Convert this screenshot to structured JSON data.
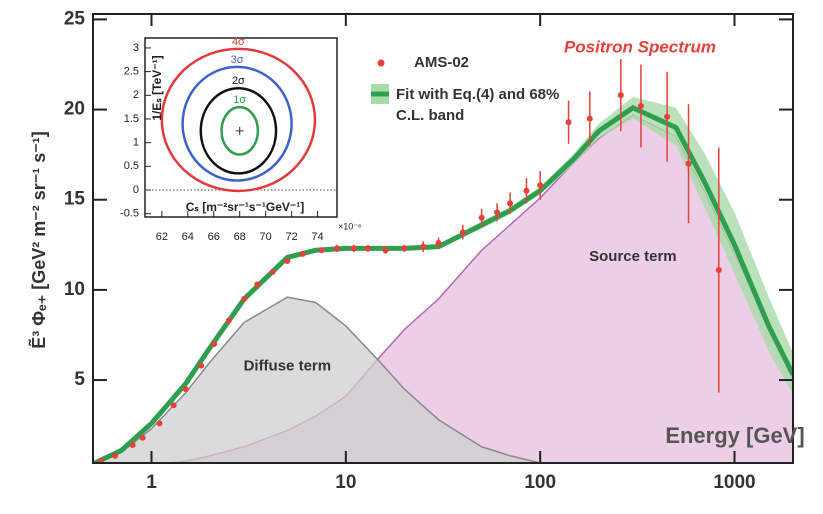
{
  "chart_data": [
    {
      "type": "line",
      "title": "Positron Spectrum",
      "xlabel": "Energy [GeV]",
      "ylabel": "Ẽ³ Φₑ₊ [GeV² m⁻² sr⁻¹ s⁻¹]",
      "xscale": "log",
      "xlim": [
        0.5,
        2000
      ],
      "ylim": [
        0.4,
        25.3
      ],
      "xticks": [
        1,
        10,
        100,
        1000
      ],
      "yticks": [
        5,
        10,
        15,
        20,
        25
      ],
      "x": [
        0.5,
        0.7,
        1,
        1.5,
        2,
        3,
        5,
        7,
        10,
        15,
        20,
        30,
        50,
        70,
        100,
        150,
        200,
        300,
        500,
        700,
        1000,
        1500,
        2000
      ],
      "series": [
        {
          "name": "Source term",
          "color": "#b06ab0",
          "fill": "#e6bfdf",
          "values": [
            null,
            null,
            0.3,
            0.5,
            0.8,
            1.3,
            2.2,
            3.0,
            4.1,
            6.3,
            7.8,
            9.5,
            12.2,
            13.6,
            15.1,
            17.1,
            18.4,
            19.7,
            18.5,
            15.5,
            12.0,
            8.0,
            5.0
          ]
        },
        {
          "name": "Diffuse term",
          "color": "#8a8a8a",
          "fill": "#cfcfcf",
          "values": [
            0.3,
            1.0,
            2.3,
            4.3,
            6.0,
            8.2,
            9.6,
            9.3,
            8.0,
            6.0,
            4.5,
            2.8,
            1.3,
            0.8,
            0.4,
            null,
            null,
            null,
            null,
            null,
            null,
            null,
            null
          ]
        },
        {
          "name": "Fit with Eq.(4) and 68% C.L. band",
          "color": "#2f9e4f",
          "band_color": "#a9dba9",
          "values": [
            0.35,
            1.1,
            2.6,
            4.8,
            6.8,
            9.5,
            11.8,
            12.2,
            12.3,
            12.3,
            12.3,
            12.4,
            13.6,
            14.4,
            15.5,
            17.3,
            18.8,
            20.1,
            19.0,
            16.0,
            12.5,
            8.0,
            5.3
          ],
          "band_low": [
            0.3,
            1.0,
            2.5,
            4.7,
            6.7,
            9.4,
            11.7,
            12.1,
            12.2,
            12.2,
            12.2,
            12.3,
            13.4,
            14.2,
            15.3,
            17.0,
            18.4,
            19.5,
            18.0,
            14.6,
            10.9,
            6.6,
            4.2
          ],
          "band_high": [
            0.4,
            1.2,
            2.7,
            4.9,
            6.9,
            9.6,
            11.9,
            12.3,
            12.4,
            12.4,
            12.4,
            12.5,
            13.8,
            14.6,
            15.7,
            17.6,
            19.2,
            20.7,
            20.1,
            17.6,
            14.3,
            9.6,
            6.5
          ]
        }
      ],
      "points": {
        "name": "AMS-02",
        "color": "#e8403a",
        "x": [
          0.55,
          0.65,
          0.8,
          0.9,
          1.1,
          1.3,
          1.5,
          1.8,
          2.1,
          2.5,
          3,
          3.5,
          4.2,
          5,
          6,
          7.5,
          9,
          11,
          13,
          16,
          20,
          25,
          30,
          40,
          50,
          60,
          70,
          85,
          100,
          140,
          180,
          260,
          330,
          450,
          580,
          830
        ],
        "values": [
          0.5,
          0.8,
          1.4,
          1.8,
          2.6,
          3.6,
          4.5,
          5.8,
          7.0,
          8.3,
          9.5,
          10.3,
          11.0,
          11.6,
          12.0,
          12.2,
          12.3,
          12.3,
          12.3,
          12.2,
          12.3,
          12.4,
          12.6,
          13.2,
          14.0,
          14.3,
          14.8,
          15.5,
          15.8,
          19.3,
          19.5,
          20.8,
          20.2,
          19.6,
          17.0,
          11.1
        ],
        "errors": [
          0.1,
          0.1,
          0.1,
          0.1,
          0.1,
          0.1,
          0.1,
          0.1,
          0.1,
          0.1,
          0.1,
          0.1,
          0.1,
          0.1,
          0.1,
          0.1,
          0.2,
          0.2,
          0.2,
          0.2,
          0.2,
          0.3,
          0.3,
          0.4,
          0.5,
          0.5,
          0.6,
          0.7,
          0.8,
          1.2,
          1.5,
          2.0,
          2.3,
          2.5,
          3.3,
          6.8
        ]
      },
      "legend": "upper left"
    },
    {
      "type": "contour",
      "xlabel": "Cₛ [m⁻²sr⁻¹s⁻¹GeV⁻¹]",
      "xmultiplier": "×10⁻⁶",
      "ylabel": "1/Eₛ [TeV⁻¹]",
      "xlim": [
        60.7,
        75.5
      ],
      "ylim": [
        -0.57,
        3.21
      ],
      "xticks": [
        62,
        64,
        66,
        68,
        70,
        72,
        74
      ],
      "yticks": [
        -0.5,
        0,
        0.5,
        1,
        1.5,
        2,
        2.5,
        3
      ],
      "refline": 0,
      "best_fit": [
        68,
        1.25
      ],
      "contours": [
        {
          "label": "1σ",
          "color": "#2f9e4f",
          "cx": 68,
          "cy": 1.25,
          "rx": 1.4,
          "ry": 0.5
        },
        {
          "label": "2σ",
          "color": "#111111",
          "cx": 67.9,
          "cy": 1.25,
          "rx": 2.9,
          "ry": 0.9
        },
        {
          "label": "3σ",
          "color": "#3f62c8",
          "cx": 67.8,
          "cy": 1.4,
          "rx": 4.2,
          "ry": 1.2
        },
        {
          "label": "4σ",
          "color": "#e23a3a",
          "cx": 67.9,
          "cy": 1.48,
          "rx": 5.9,
          "ry": 1.5
        }
      ]
    }
  ]
}
